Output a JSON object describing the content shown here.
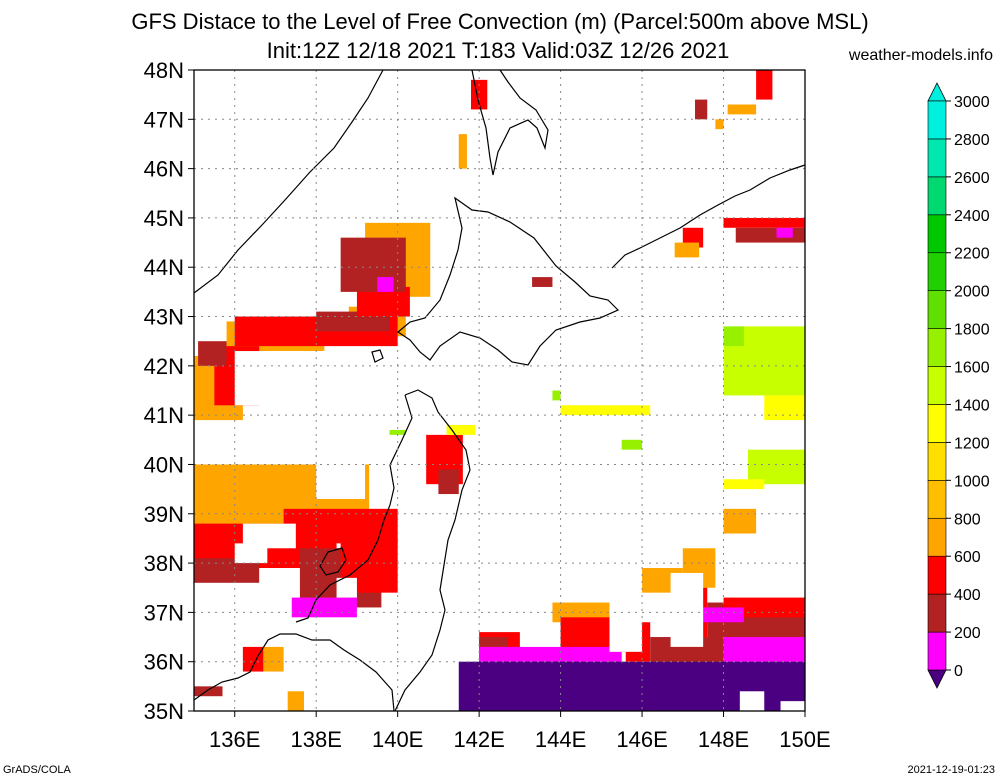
{
  "header": {
    "title_line1": "GFS Distace to the Level of Free Convection (m) (Parcel:500m above MSL)",
    "title_line2": "Init:12Z 12/18 2021 T:183 Valid:03Z 12/26 2021",
    "site": "weather-models.info"
  },
  "map": {
    "lon_range": [
      135,
      150
    ],
    "lat_range": [
      35,
      48
    ],
    "lon_ticks": [
      136,
      138,
      140,
      142,
      144,
      146,
      148,
      150
    ],
    "lat_ticks": [
      35,
      36,
      37,
      38,
      39,
      40,
      41,
      42,
      43,
      44,
      45,
      46,
      47,
      48
    ],
    "lon_labels": [
      "136E",
      "138E",
      "140E",
      "142E",
      "144E",
      "146E",
      "148E",
      "150E"
    ],
    "lat_labels": [
      "35N",
      "36N",
      "37N",
      "38N",
      "39N",
      "40N",
      "41N",
      "42N",
      "43N",
      "44N",
      "45N",
      "46N",
      "47N",
      "48N"
    ],
    "grid": "dotted"
  },
  "colorbar": {
    "levels": [
      "0",
      "200",
      "400",
      "600",
      "800",
      "1000",
      "1200",
      "1400",
      "1600",
      "1800",
      "2000",
      "2200",
      "2400",
      "2600",
      "2800",
      "3000"
    ],
    "colors": [
      "#4b0082",
      "#ff00ff",
      "#b22222",
      "#ff0000",
      "#ffa500",
      "#ffbf00",
      "#ffdf00",
      "#ffff00",
      "#c8ff00",
      "#96f000",
      "#60e000",
      "#20d000",
      "#00c800",
      "#00d870",
      "#00e8b0",
      "#00f0e0"
    ]
  },
  "fields": {
    "note_units": "m",
    "palette": {
      "purple": "#4b0082",
      "magenta": "#ff00ff",
      "brown": "#b22222",
      "red": "#ff0000",
      "orange": "#ffa500",
      "amber": "#ffbf00",
      "yellow": "#ffff00",
      "lime": "#c8ff00",
      "green": "#96f000"
    }
  },
  "footer": {
    "left": "GrADS/COLA",
    "right": "2021-12-19-01:23"
  }
}
